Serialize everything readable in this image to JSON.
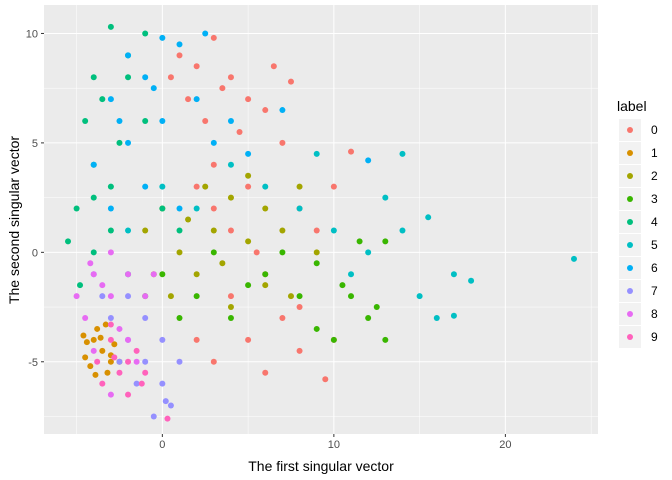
{
  "chart_data": {
    "type": "scatter",
    "xlabel": "The first singular vector",
    "ylabel": "The second singular vector",
    "xlim": [
      -6.9,
      25.4
    ],
    "ylim": [
      -8.3,
      11.3
    ],
    "xticks": [
      0,
      10,
      20
    ],
    "yticks": [
      -5,
      0,
      5,
      10
    ],
    "grid": true,
    "legend": {
      "title": "label",
      "position": "right"
    },
    "series": [
      {
        "name": "0",
        "color": "#F8766D",
        "points": [
          [
            1,
            9
          ],
          [
            2,
            8.5
          ],
          [
            3,
            9.8
          ],
          [
            4,
            8
          ],
          [
            5,
            7
          ],
          [
            2.5,
            6
          ],
          [
            6,
            6.5
          ],
          [
            7,
            5
          ],
          [
            3,
            4
          ],
          [
            5,
            3
          ],
          [
            8,
            2
          ],
          [
            4,
            1
          ],
          [
            6,
            -1
          ],
          [
            7,
            -3
          ],
          [
            5,
            -4
          ],
          [
            3,
            -5
          ],
          [
            6,
            -5.5
          ],
          [
            8,
            -4.5
          ],
          [
            9.5,
            -5.8
          ],
          [
            1.5,
            7
          ],
          [
            3.5,
            7.5
          ],
          [
            4.5,
            5.5
          ],
          [
            7.5,
            7.8
          ],
          [
            2,
            3
          ],
          [
            5.5,
            0
          ],
          [
            9,
            1
          ],
          [
            10,
            3
          ],
          [
            11,
            4.6
          ],
          [
            0.5,
            8
          ],
          [
            4,
            -2
          ],
          [
            2,
            -4
          ],
          [
            8,
            -2.5
          ],
          [
            10,
            -4
          ],
          [
            6.5,
            8.5
          ],
          [
            3,
            2
          ]
        ]
      },
      {
        "name": "1",
        "color": "#D89000",
        "points": [
          [
            -4,
            -4
          ],
          [
            -3.5,
            -4.5
          ],
          [
            -3,
            -5
          ],
          [
            -4.5,
            -4.8
          ],
          [
            -3.8,
            -3.5
          ],
          [
            -3.2,
            -5.5
          ],
          [
            -2.8,
            -4.2
          ],
          [
            -4.2,
            -5.2
          ],
          [
            -3.6,
            -3.9
          ],
          [
            -3,
            -4.7
          ],
          [
            -4.4,
            -4.1
          ],
          [
            -3.3,
            -3.3
          ],
          [
            -2.5,
            -5
          ],
          [
            -3.9,
            -5.6
          ],
          [
            -4.6,
            -3.8
          ]
        ]
      },
      {
        "name": "2",
        "color": "#A3A500",
        "points": [
          [
            -1,
            1
          ],
          [
            0,
            2
          ],
          [
            1,
            0
          ],
          [
            2,
            -1
          ],
          [
            3,
            1
          ],
          [
            4,
            2.5
          ],
          [
            5,
            0.5
          ],
          [
            6,
            -1.5
          ],
          [
            7,
            1
          ],
          [
            8,
            3
          ],
          [
            0.5,
            -2
          ],
          [
            2.5,
            3
          ],
          [
            4,
            -2.5
          ],
          [
            -0.5,
            -1
          ],
          [
            1.5,
            1.5
          ],
          [
            3.5,
            -0.5
          ],
          [
            6,
            2
          ],
          [
            9,
            0
          ],
          [
            5,
            3.5
          ],
          [
            7.5,
            -2
          ]
        ]
      },
      {
        "name": "3",
        "color": "#39B600",
        "points": [
          [
            0,
            -1
          ],
          [
            2,
            -2
          ],
          [
            4,
            -3
          ],
          [
            6,
            -1
          ],
          [
            8,
            -2
          ],
          [
            9,
            -3.5
          ],
          [
            10,
            -4
          ],
          [
            11,
            -2
          ],
          [
            12,
            -3
          ],
          [
            13,
            -4
          ],
          [
            12.5,
            -2.5
          ],
          [
            11.5,
            0.5
          ],
          [
            13,
            0.5
          ],
          [
            9,
            -0.5
          ],
          [
            7,
            0
          ],
          [
            5,
            -1.5
          ],
          [
            3,
            0
          ],
          [
            1,
            -3
          ],
          [
            -1,
            -2
          ],
          [
            10.5,
            -1.5
          ]
        ]
      },
      {
        "name": "4",
        "color": "#00BF7D",
        "points": [
          [
            -3,
            10.3
          ],
          [
            -1,
            10
          ],
          [
            -2,
            9
          ],
          [
            -4,
            8
          ],
          [
            -3.5,
            7
          ],
          [
            -4.5,
            6
          ],
          [
            -2.5,
            5
          ],
          [
            -4,
            4
          ],
          [
            -5,
            2
          ],
          [
            -3,
            1
          ],
          [
            -4,
            0
          ],
          [
            -2,
            -1
          ],
          [
            -4.8,
            -1.5
          ],
          [
            0,
            2
          ],
          [
            1,
            1
          ],
          [
            -1,
            6
          ],
          [
            -3,
            3
          ],
          [
            -2,
            8
          ],
          [
            -4,
            2.5
          ],
          [
            -5.5,
            0.5
          ]
        ]
      },
      {
        "name": "5",
        "color": "#00BFC4",
        "points": [
          [
            -2,
            1
          ],
          [
            0,
            3
          ],
          [
            2,
            2
          ],
          [
            4,
            4
          ],
          [
            6,
            3
          ],
          [
            8,
            2
          ],
          [
            10,
            1
          ],
          [
            12,
            0
          ],
          [
            14,
            1
          ],
          [
            15,
            -2
          ],
          [
            16,
            -3
          ],
          [
            17,
            -1
          ],
          [
            18,
            -1.3
          ],
          [
            24,
            -0.3
          ],
          [
            14,
            4.5
          ],
          [
            13,
            2.5
          ],
          [
            11,
            -1
          ],
          [
            9,
            4.5
          ],
          [
            15.5,
            1.6
          ],
          [
            17,
            -2.9
          ]
        ]
      },
      {
        "name": "6",
        "color": "#00B0F6",
        "points": [
          [
            -2,
            9
          ],
          [
            0,
            9.8
          ],
          [
            1,
            9.5
          ],
          [
            2.5,
            10
          ],
          [
            -1,
            8
          ],
          [
            -3,
            7
          ],
          [
            -2,
            5
          ],
          [
            -4,
            4
          ],
          [
            0,
            6
          ],
          [
            2,
            7
          ],
          [
            3,
            5
          ],
          [
            5,
            4.5
          ],
          [
            -1,
            3
          ],
          [
            1,
            2
          ],
          [
            -3,
            2
          ],
          [
            4,
            6
          ],
          [
            -0.5,
            7.5
          ],
          [
            -2.5,
            6
          ],
          [
            7,
            6.5
          ],
          [
            12,
            4.2
          ]
        ]
      },
      {
        "name": "7",
        "color": "#9590FF",
        "points": [
          [
            -2,
            -4
          ],
          [
            -1,
            -5
          ],
          [
            0,
            -6
          ],
          [
            0.5,
            -7
          ],
          [
            -0.5,
            -7.5
          ],
          [
            -3,
            -3
          ],
          [
            -2,
            -2
          ],
          [
            -1,
            -3
          ],
          [
            0,
            -4
          ],
          [
            1,
            -5
          ],
          [
            -1.5,
            -6
          ],
          [
            -3.5,
            -2
          ],
          [
            -2.5,
            -5
          ],
          [
            0.2,
            -6.8
          ],
          [
            -4,
            -1
          ]
        ]
      },
      {
        "name": "8",
        "color": "#E76BF3",
        "points": [
          [
            -4,
            -1
          ],
          [
            -3,
            -2
          ],
          [
            -4.5,
            -3
          ],
          [
            -2,
            -1
          ],
          [
            -3,
            0
          ],
          [
            -1,
            -2
          ],
          [
            -2.5,
            -3.5
          ],
          [
            -4,
            -4.5
          ],
          [
            -1.5,
            -5
          ],
          [
            -3.5,
            -1.5
          ],
          [
            -5,
            -2
          ],
          [
            -0.5,
            -1
          ],
          [
            -2,
            -4
          ],
          [
            -3,
            -6.5
          ],
          [
            -4.2,
            -0.5
          ]
        ]
      },
      {
        "name": "9",
        "color": "#FF62BC",
        "points": [
          [
            -3,
            -4
          ],
          [
            -2,
            -5
          ],
          [
            -2.5,
            -5.5
          ],
          [
            -3.5,
            -6
          ],
          [
            -1.5,
            -4.5
          ],
          [
            -2,
            -6.5
          ],
          [
            0.3,
            -7.6
          ],
          [
            -3,
            -3.3
          ],
          [
            -1,
            -5.5
          ],
          [
            -2.8,
            -4.8
          ],
          [
            -3.8,
            -5
          ],
          [
            -1.2,
            -6
          ]
        ]
      }
    ]
  }
}
